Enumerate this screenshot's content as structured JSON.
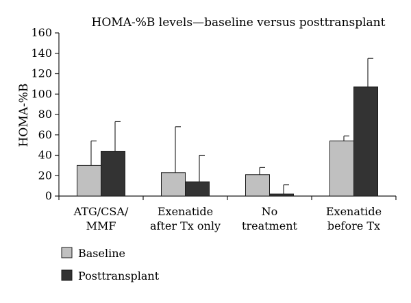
{
  "chart_data": {
    "type": "bar",
    "title": "HOMA-%B levels—baseline versus posttransplant",
    "xlabel": "",
    "ylabel": "HOMA-%B",
    "ylim": [
      0,
      160
    ],
    "yticks": [
      0,
      20,
      40,
      60,
      80,
      100,
      120,
      140,
      160
    ],
    "grid": false,
    "legend_placement": "bottom-left",
    "categories": [
      [
        "ATG/CSA/",
        "MMF"
      ],
      [
        "Exenatide",
        "after Tx only"
      ],
      [
        "No",
        "treatment"
      ],
      [
        "Exenatide",
        "before Tx"
      ]
    ],
    "series": [
      {
        "name": "Baseline",
        "color": "#c0c0c0",
        "values": [
          30,
          23,
          21,
          54
        ],
        "error": [
          24,
          45,
          7,
          5
        ]
      },
      {
        "name": "Posttransplant",
        "color": "#333333",
        "values": [
          44,
          14,
          2,
          107
        ],
        "error": [
          29,
          26,
          9,
          28
        ]
      }
    ]
  }
}
